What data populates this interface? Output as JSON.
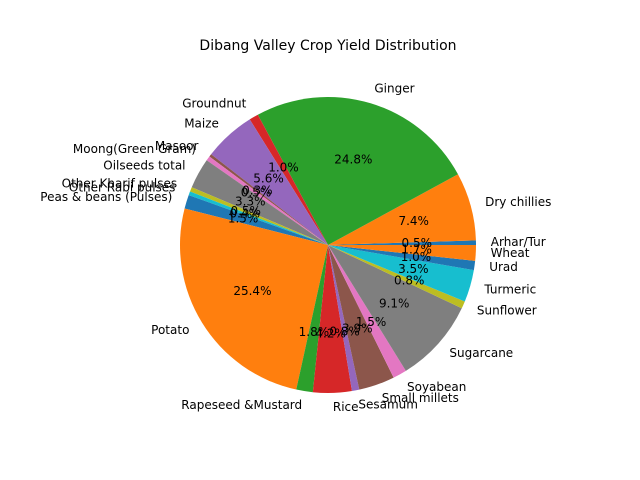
{
  "chart_data": {
    "type": "pie",
    "title": "Dibang Valley Crop Yield Distribution",
    "start_angle_deg": 0,
    "direction": "counterclockwise",
    "slices": [
      {
        "label": "Arhar/Tur",
        "value": 0.5,
        "pct_label": "0.5%",
        "color": "#1f77b4"
      },
      {
        "label": "Dry chillies",
        "value": 7.4,
        "pct_label": "7.4%",
        "color": "#ff7f0e"
      },
      {
        "label": "Ginger",
        "value": 24.8,
        "pct_label": "24.8%",
        "color": "#2ca02c"
      },
      {
        "label": "Groundnut",
        "value": 1.0,
        "pct_label": "1.0%",
        "color": "#d62728"
      },
      {
        "label": "Maize",
        "value": 5.6,
        "pct_label": "5.6%",
        "color": "#9467bd"
      },
      {
        "label": "Masoor",
        "value": 0.3,
        "pct_label": "0.3%",
        "color": "#8c564b"
      },
      {
        "label": "Moong(Green Gram)",
        "value": 0.5,
        "pct_label": "0.5%",
        "color": "#e377c2"
      },
      {
        "label": "Oilseeds total",
        "value": 3.3,
        "pct_label": "3.3%",
        "color": "#7f7f7f"
      },
      {
        "label": "Other Kharif pulses",
        "value": 0.5,
        "pct_label": "0.5%",
        "color": "#bcbd22"
      },
      {
        "label": "Other Rabi pulses",
        "value": 0.4,
        "pct_label": "0.4%",
        "color": "#17becf"
      },
      {
        "label": "Peas & beans (Pulses)",
        "value": 1.5,
        "pct_label": "1.5%",
        "color": "#1f77b4"
      },
      {
        "label": "Potato",
        "value": 25.4,
        "pct_label": "25.4%",
        "color": "#ff7f0e"
      },
      {
        "label": "Rapeseed &Mustard",
        "value": 1.8,
        "pct_label": "1.8%",
        "color": "#2ca02c"
      },
      {
        "label": "Rice",
        "value": 4.2,
        "pct_label": "4.2%",
        "color": "#d62728"
      },
      {
        "label": "Sesamum",
        "value": 0.8,
        "pct_label": "0.8%",
        "color": "#9467bd"
      },
      {
        "label": "Small millets",
        "value": 3.9,
        "pct_label": "3.9%",
        "color": "#8c564b"
      },
      {
        "label": "Soyabean",
        "value": 1.5,
        "pct_label": "1.5%",
        "color": "#e377c2"
      },
      {
        "label": "Sugarcane",
        "value": 9.1,
        "pct_label": "9.1%",
        "color": "#7f7f7f"
      },
      {
        "label": "Sunflower",
        "value": 0.8,
        "pct_label": "0.8%",
        "color": "#bcbd22"
      },
      {
        "label": "Turmeric",
        "value": 3.5,
        "pct_label": "3.5%",
        "color": "#17becf"
      },
      {
        "label": "Urad",
        "value": 1.0,
        "pct_label": "1.0%",
        "color": "#1f77b4"
      },
      {
        "label": "Wheat",
        "value": 1.7,
        "pct_label": "1.7%",
        "color": "#ff7f0e"
      }
    ]
  }
}
